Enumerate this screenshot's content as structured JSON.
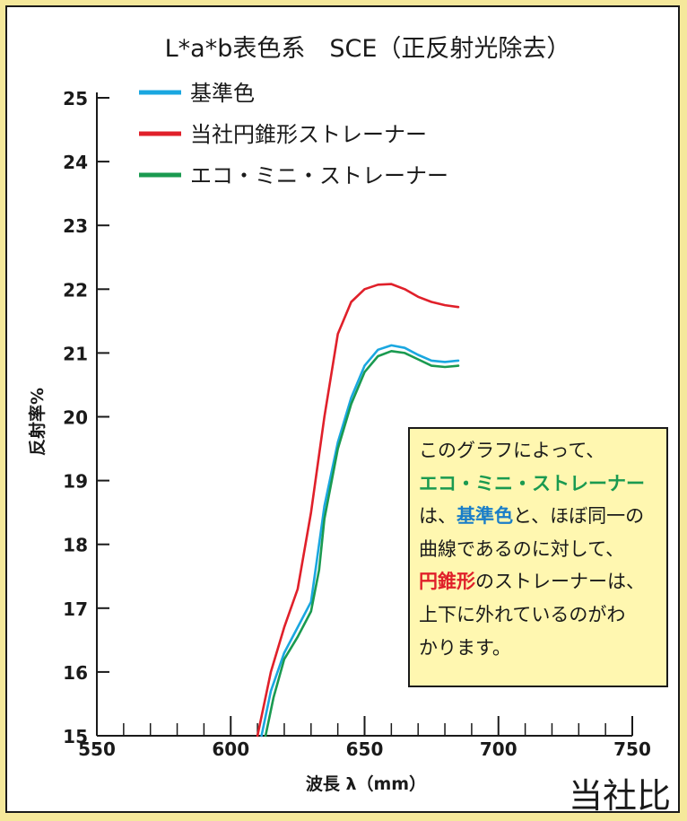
{
  "chart_data": {
    "type": "line",
    "title": "L*a*b表色系　SCE（正反射光除去）",
    "xlabel": "波長 λ（mm）",
    "ylabel": "反射率%",
    "xlim": [
      550,
      750
    ],
    "ylim": [
      15,
      25
    ],
    "xticks": [
      550,
      600,
      650,
      700,
      750
    ],
    "yticks": [
      15,
      16,
      17,
      18,
      19,
      20,
      21,
      22,
      23,
      24,
      25
    ],
    "grid": false,
    "legend_position": "top-left",
    "series": [
      {
        "name": "基準色",
        "color": "#1aa7e0",
        "x": [
          611.5,
          615,
          620,
          625,
          630,
          632,
          635,
          640,
          645,
          650,
          655,
          660,
          665,
          670,
          675,
          680,
          685
        ],
        "y": [
          15.0,
          15.7,
          16.3,
          16.7,
          17.1,
          17.7,
          18.6,
          19.6,
          20.3,
          20.8,
          21.05,
          21.12,
          21.08,
          20.97,
          20.88,
          20.86,
          20.88
        ]
      },
      {
        "name": "当社円錐形ストレーナー",
        "color": "#e0202a",
        "x": [
          610,
          615,
          620,
          625,
          630,
          635,
          640,
          645,
          650,
          655,
          660,
          665,
          670,
          675,
          680,
          685
        ],
        "y": [
          15.0,
          16.0,
          16.7,
          17.3,
          18.5,
          20.0,
          21.3,
          21.8,
          22.0,
          22.07,
          22.08,
          22.0,
          21.88,
          21.8,
          21.75,
          21.72
        ]
      },
      {
        "name": "エコ・ミニ・ストレーナー",
        "color": "#1a9a50",
        "x": [
          613,
          616,
          620,
          625,
          630,
          633,
          635,
          640,
          645,
          650,
          655,
          660,
          665,
          670,
          675,
          680,
          685
        ],
        "y": [
          15.0,
          15.6,
          16.2,
          16.55,
          16.95,
          17.6,
          18.4,
          19.5,
          20.2,
          20.7,
          20.95,
          21.03,
          21.0,
          20.9,
          20.8,
          20.78,
          20.8
        ]
      }
    ]
  },
  "callout": {
    "line1": "このグラフによって、",
    "line2": "エコ・ミニ・ストレーナー",
    "line3_highlight": "基準色",
    "line3_pre": "は、",
    "line3_post": "と、ほぼ同一の",
    "line4": "曲線であるのに対して、",
    "line5_highlight": "円錐形",
    "line5_post": "のストレーナーは、",
    "line6": "上下に外れているのがわ",
    "line7": "かります。",
    "colors": {
      "green": "#1a9a50",
      "blue": "#1a7ec8",
      "red": "#e0202a"
    }
  },
  "bottom_mark": "当社比"
}
